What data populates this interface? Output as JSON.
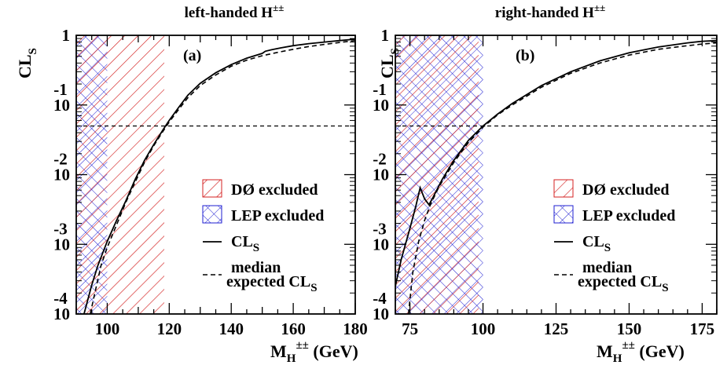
{
  "chart_data": [
    {
      "type": "line",
      "title": "left-handed H",
      "title_sup": "±±",
      "panel_label": "(a)",
      "xlabel": {
        "main": "M",
        "sub": "H",
        "sup": "±±",
        "unit": " (GeV)"
      },
      "ylabel": {
        "main": "CL",
        "sub": "S"
      },
      "xlim": [
        90,
        180
      ],
      "ylim": [
        0.0001,
        1
      ],
      "yscale": "log",
      "xticks": [
        100,
        120,
        140,
        160,
        180
      ],
      "yticks": [
        {
          "value": 1,
          "base": "1",
          "exp": ""
        },
        {
          "value": 0.1,
          "base": "10",
          "exp": "-1"
        },
        {
          "value": 0.01,
          "base": "10",
          "exp": "-2"
        },
        {
          "value": 0.001,
          "base": "10",
          "exp": "-3"
        },
        {
          "value": 0.0001,
          "base": "10",
          "exp": "-4"
        }
      ],
      "reference_line": {
        "y": 0.05,
        "style": "dashed"
      },
      "regions": [
        {
          "name": "LEP excluded",
          "x": [
            90,
            100
          ],
          "pattern": "crosshatch",
          "color": "#1f1fd2"
        },
        {
          "name": "DØ excluded",
          "x": [
            90,
            118.4
          ],
          "pattern": "diagonal",
          "color": "#d42020"
        }
      ],
      "series": [
        {
          "name": "CL",
          "name_sub": "S",
          "style": "solid",
          "x": [
            92.5,
            95,
            97,
            100,
            103,
            106,
            109,
            112,
            115,
            118,
            120,
            123,
            126,
            130,
            135,
            140,
            145,
            150,
            151,
            153,
            156,
            160,
            165,
            170,
            175,
            180
          ],
          "y": [
            0.0001,
            0.00026,
            0.0005,
            0.0011,
            0.0022,
            0.0042,
            0.0085,
            0.016,
            0.027,
            0.044,
            0.06,
            0.092,
            0.138,
            0.205,
            0.29,
            0.38,
            0.47,
            0.55,
            0.59,
            0.62,
            0.66,
            0.71,
            0.76,
            0.8,
            0.84,
            0.88
          ]
        },
        {
          "name": "median",
          "name_line2": "expected CL",
          "name_sub": "S",
          "style": "dashed",
          "x": [
            94.5,
            96,
            98,
            100,
            103,
            106,
            109,
            112,
            115,
            118,
            120,
            123,
            126,
            130,
            135,
            140,
            145,
            150,
            155,
            160,
            165,
            170,
            175,
            180
          ],
          "y": [
            0.0001,
            0.0002,
            0.0005,
            0.0009,
            0.0019,
            0.004,
            0.0078,
            0.015,
            0.026,
            0.042,
            0.057,
            0.086,
            0.127,
            0.19,
            0.27,
            0.36,
            0.44,
            0.51,
            0.57,
            0.63,
            0.69,
            0.74,
            0.79,
            0.84
          ]
        }
      ],
      "legend": {
        "position": "bottom-right",
        "entries": [
          "DØ excluded",
          "LEP excluded",
          "CL_S",
          "median expected CL_S"
        ]
      }
    },
    {
      "type": "line",
      "title": "right-handed H",
      "title_sup": "±±",
      "panel_label": "(b)",
      "xlabel": {
        "main": "M",
        "sub": "H",
        "sup": "±±",
        "unit": " (GeV)"
      },
      "ylabel": {
        "main": "CL",
        "sub": "S"
      },
      "xlim": [
        70,
        180
      ],
      "ylim": [
        0.0001,
        1
      ],
      "yscale": "log",
      "xticks": [
        75,
        100,
        125,
        150,
        175
      ],
      "yticks": [
        {
          "value": 1,
          "base": "1",
          "exp": ""
        },
        {
          "value": 0.1,
          "base": "10",
          "exp": "-1"
        },
        {
          "value": 0.01,
          "base": "10",
          "exp": "-2"
        },
        {
          "value": 0.001,
          "base": "10",
          "exp": "-3"
        },
        {
          "value": 0.0001,
          "base": "10",
          "exp": "-4"
        }
      ],
      "reference_line": {
        "y": 0.05,
        "style": "dashed"
      },
      "regions": [
        {
          "name": "LEP excluded",
          "x": [
            70,
            100
          ],
          "pattern": "crosshatch",
          "color": "#1f1fd2"
        },
        {
          "name": "DØ excluded",
          "x": [
            70,
            98.5
          ],
          "pattern": "diagonal",
          "color": "#d42020"
        }
      ],
      "series": [
        {
          "name": "CL",
          "name_sub": "S",
          "style": "solid",
          "x": [
            70,
            72,
            75,
            77,
            78.5,
            80,
            81.5,
            83,
            86,
            90,
            95,
            100,
            105,
            110,
            120,
            130,
            140,
            150,
            160,
            170,
            175,
            180
          ],
          "y": [
            0.00025,
            0.0006,
            0.0017,
            0.0035,
            0.0065,
            0.0045,
            0.0037,
            0.0048,
            0.0085,
            0.016,
            0.031,
            0.05,
            0.074,
            0.105,
            0.19,
            0.3,
            0.43,
            0.56,
            0.68,
            0.78,
            0.82,
            0.84
          ]
        },
        {
          "name": "median",
          "name_line2": "expected CL",
          "name_sub": "S",
          "style": "dashed",
          "x": [
            74.5,
            76,
            78,
            80,
            82,
            85,
            90,
            95,
            100,
            105,
            110,
            120,
            130,
            140,
            150,
            160,
            170,
            175,
            180
          ],
          "y": [
            0.0001,
            0.0004,
            0.0011,
            0.0022,
            0.0037,
            0.0068,
            0.015,
            0.029,
            0.048,
            0.072,
            0.1,
            0.18,
            0.285,
            0.4,
            0.52,
            0.63,
            0.71,
            0.75,
            0.78
          ]
        }
      ],
      "legend": {
        "position": "bottom-right",
        "entries": [
          "DØ excluded",
          "LEP excluded",
          "CL_S",
          "median expected CL_S"
        ]
      }
    }
  ],
  "legend_labels": {
    "d0": "DØ excluded",
    "lep": "LEP excluded",
    "cls_main": "CL",
    "cls_sub": "S",
    "median_line1": "median",
    "median_line2": "expected CL",
    "median_sub": "S"
  },
  "colors": {
    "d0": "#d42020",
    "lep": "#1f1fd2",
    "line": "#000000"
  }
}
